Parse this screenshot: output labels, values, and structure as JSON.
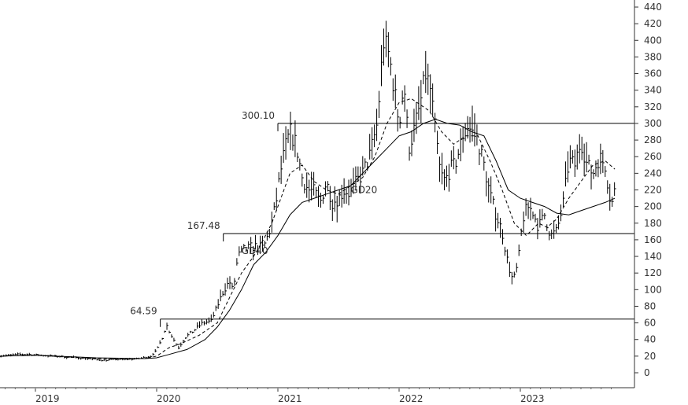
{
  "chart_data": {
    "type": "ohlc",
    "title": "",
    "xlabel": "",
    "ylabel": "",
    "ylim": [
      0,
      440
    ],
    "y_ticks": [
      0,
      20,
      40,
      60,
      80,
      100,
      120,
      140,
      160,
      180,
      200,
      220,
      240,
      260,
      280,
      300,
      320,
      340,
      360,
      380,
      400,
      420,
      440
    ],
    "x_tick_labels": [
      "2019",
      "2020",
      "2021",
      "2022",
      "2023"
    ],
    "x_range_years": [
      2018.7,
      2023.8
    ],
    "grid": false,
    "price_color": "#000000",
    "line_color": "#000000",
    "horizontal_levels": [
      {
        "value": 300.1,
        "label": "300.10"
      },
      {
        "value": 167.48,
        "label": "167.48"
      },
      {
        "value": 64.59,
        "label": "64.59"
      }
    ],
    "moving_average_labels": [
      {
        "text": "GD20",
        "near": [
          2021.6,
          216
        ]
      },
      {
        "text": "GD40",
        "near": [
          2020.7,
          143
        ]
      }
    ],
    "close_series": [
      [
        2018.7,
        20
      ],
      [
        2018.85,
        22
      ],
      [
        2018.95,
        22
      ],
      [
        2019.05,
        21
      ],
      [
        2019.15,
        20
      ],
      [
        2019.25,
        19
      ],
      [
        2019.35,
        18
      ],
      [
        2019.45,
        17
      ],
      [
        2019.55,
        15
      ],
      [
        2019.65,
        16
      ],
      [
        2019.75,
        16
      ],
      [
        2019.85,
        17
      ],
      [
        2019.95,
        20
      ],
      [
        2020.0,
        27
      ],
      [
        2020.04,
        40
      ],
      [
        2020.08,
        58
      ],
      [
        2020.12,
        45
      ],
      [
        2020.18,
        30
      ],
      [
        2020.23,
        42
      ],
      [
        2020.3,
        50
      ],
      [
        2020.38,
        60
      ],
      [
        2020.45,
        62
      ],
      [
        2020.5,
        80
      ],
      [
        2020.55,
        98
      ],
      [
        2020.6,
        110
      ],
      [
        2020.63,
        98
      ],
      [
        2020.67,
        140
      ],
      [
        2020.72,
        148
      ],
      [
        2020.8,
        152
      ],
      [
        2020.88,
        150
      ],
      [
        2020.93,
        170
      ],
      [
        2020.98,
        200
      ],
      [
        2021.02,
        240
      ],
      [
        2021.06,
        270
      ],
      [
        2021.1,
        290
      ],
      [
        2021.15,
        275
      ],
      [
        2021.2,
        235
      ],
      [
        2021.25,
        220
      ],
      [
        2021.3,
        218
      ],
      [
        2021.35,
        205
      ],
      [
        2021.4,
        230
      ],
      [
        2021.45,
        205
      ],
      [
        2021.5,
        210
      ],
      [
        2021.55,
        220
      ],
      [
        2021.6,
        215
      ],
      [
        2021.65,
        230
      ],
      [
        2021.7,
        240
      ],
      [
        2021.76,
        262
      ],
      [
        2021.82,
        300
      ],
      [
        2021.87,
        400
      ],
      [
        2021.92,
        380
      ],
      [
        2021.96,
        340
      ],
      [
        2022.0,
        300
      ],
      [
        2022.04,
        350
      ],
      [
        2022.08,
        270
      ],
      [
        2022.12,
        290
      ],
      [
        2022.17,
        320
      ],
      [
        2022.22,
        360
      ],
      [
        2022.26,
        340
      ],
      [
        2022.3,
        290
      ],
      [
        2022.34,
        240
      ],
      [
        2022.38,
        230
      ],
      [
        2022.42,
        245
      ],
      [
        2022.46,
        250
      ],
      [
        2022.5,
        270
      ],
      [
        2022.55,
        300
      ],
      [
        2022.6,
        290
      ],
      [
        2022.65,
        280
      ],
      [
        2022.7,
        250
      ],
      [
        2022.75,
        215
      ],
      [
        2022.8,
        190
      ],
      [
        2022.85,
        170
      ],
      [
        2022.9,
        130
      ],
      [
        2022.94,
        110
      ],
      [
        2022.98,
        130
      ],
      [
        2023.02,
        185
      ],
      [
        2023.06,
        200
      ],
      [
        2023.1,
        195
      ],
      [
        2023.15,
        175
      ],
      [
        2023.2,
        190
      ],
      [
        2023.25,
        165
      ],
      [
        2023.3,
        170
      ],
      [
        2023.35,
        200
      ],
      [
        2023.4,
        255
      ],
      [
        2023.45,
        250
      ],
      [
        2023.5,
        280
      ],
      [
        2023.55,
        250
      ],
      [
        2023.6,
        240
      ],
      [
        2023.65,
        260
      ],
      [
        2023.7,
        250
      ],
      [
        2023.75,
        200
      ],
      [
        2023.78,
        220
      ]
    ],
    "gd20_series": [
      [
        2018.7,
        20
      ],
      [
        2019.0,
        21
      ],
      [
        2019.5,
        17
      ],
      [
        2019.9,
        17
      ],
      [
        2020.0,
        20
      ],
      [
        2020.1,
        30
      ],
      [
        2020.2,
        35
      ],
      [
        2020.35,
        45
      ],
      [
        2020.5,
        60
      ],
      [
        2020.6,
        90
      ],
      [
        2020.7,
        120
      ],
      [
        2020.8,
        140
      ],
      [
        2020.88,
        160
      ],
      [
        2020.95,
        180
      ],
      [
        2021.0,
        200
      ],
      [
        2021.1,
        240
      ],
      [
        2021.2,
        250
      ],
      [
        2021.3,
        230
      ],
      [
        2021.4,
        220
      ],
      [
        2021.5,
        215
      ],
      [
        2021.6,
        225
      ],
      [
        2021.7,
        235
      ],
      [
        2021.8,
        260
      ],
      [
        2021.9,
        300
      ],
      [
        2022.0,
        325
      ],
      [
        2022.1,
        330
      ],
      [
        2022.2,
        320
      ],
      [
        2022.25,
        315
      ],
      [
        2022.35,
        290
      ],
      [
        2022.45,
        275
      ],
      [
        2022.55,
        285
      ],
      [
        2022.65,
        285
      ],
      [
        2022.75,
        255
      ],
      [
        2022.85,
        220
      ],
      [
        2022.95,
        180
      ],
      [
        2023.05,
        165
      ],
      [
        2023.15,
        180
      ],
      [
        2023.22,
        175
      ],
      [
        2023.3,
        185
      ],
      [
        2023.4,
        210
      ],
      [
        2023.5,
        230
      ],
      [
        2023.6,
        250
      ],
      [
        2023.7,
        255
      ],
      [
        2023.78,
        245
      ]
    ],
    "gd40_series": [
      [
        2018.7,
        20
      ],
      [
        2019.0,
        21
      ],
      [
        2019.5,
        18
      ],
      [
        2019.9,
        17
      ],
      [
        2020.0,
        18
      ],
      [
        2020.1,
        22
      ],
      [
        2020.25,
        28
      ],
      [
        2020.4,
        40
      ],
      [
        2020.5,
        55
      ],
      [
        2020.6,
        75
      ],
      [
        2020.7,
        100
      ],
      [
        2020.8,
        130
      ],
      [
        2020.9,
        145
      ],
      [
        2021.0,
        165
      ],
      [
        2021.1,
        190
      ],
      [
        2021.2,
        205
      ],
      [
        2021.3,
        210
      ],
      [
        2021.4,
        215
      ],
      [
        2021.5,
        220
      ],
      [
        2021.6,
        225
      ],
      [
        2021.7,
        240
      ],
      [
        2021.8,
        255
      ],
      [
        2021.9,
        270
      ],
      [
        2022.0,
        285
      ],
      [
        2022.1,
        290
      ],
      [
        2022.2,
        300
      ],
      [
        2022.3,
        305
      ],
      [
        2022.4,
        300
      ],
      [
        2022.5,
        298
      ],
      [
        2022.6,
        290
      ],
      [
        2022.7,
        285
      ],
      [
        2022.8,
        255
      ],
      [
        2022.9,
        220
      ],
      [
        2023.0,
        210
      ],
      [
        2023.1,
        205
      ],
      [
        2023.2,
        200
      ],
      [
        2023.3,
        192
      ],
      [
        2023.4,
        190
      ],
      [
        2023.5,
        195
      ],
      [
        2023.6,
        200
      ],
      [
        2023.7,
        205
      ],
      [
        2023.78,
        210
      ]
    ]
  }
}
